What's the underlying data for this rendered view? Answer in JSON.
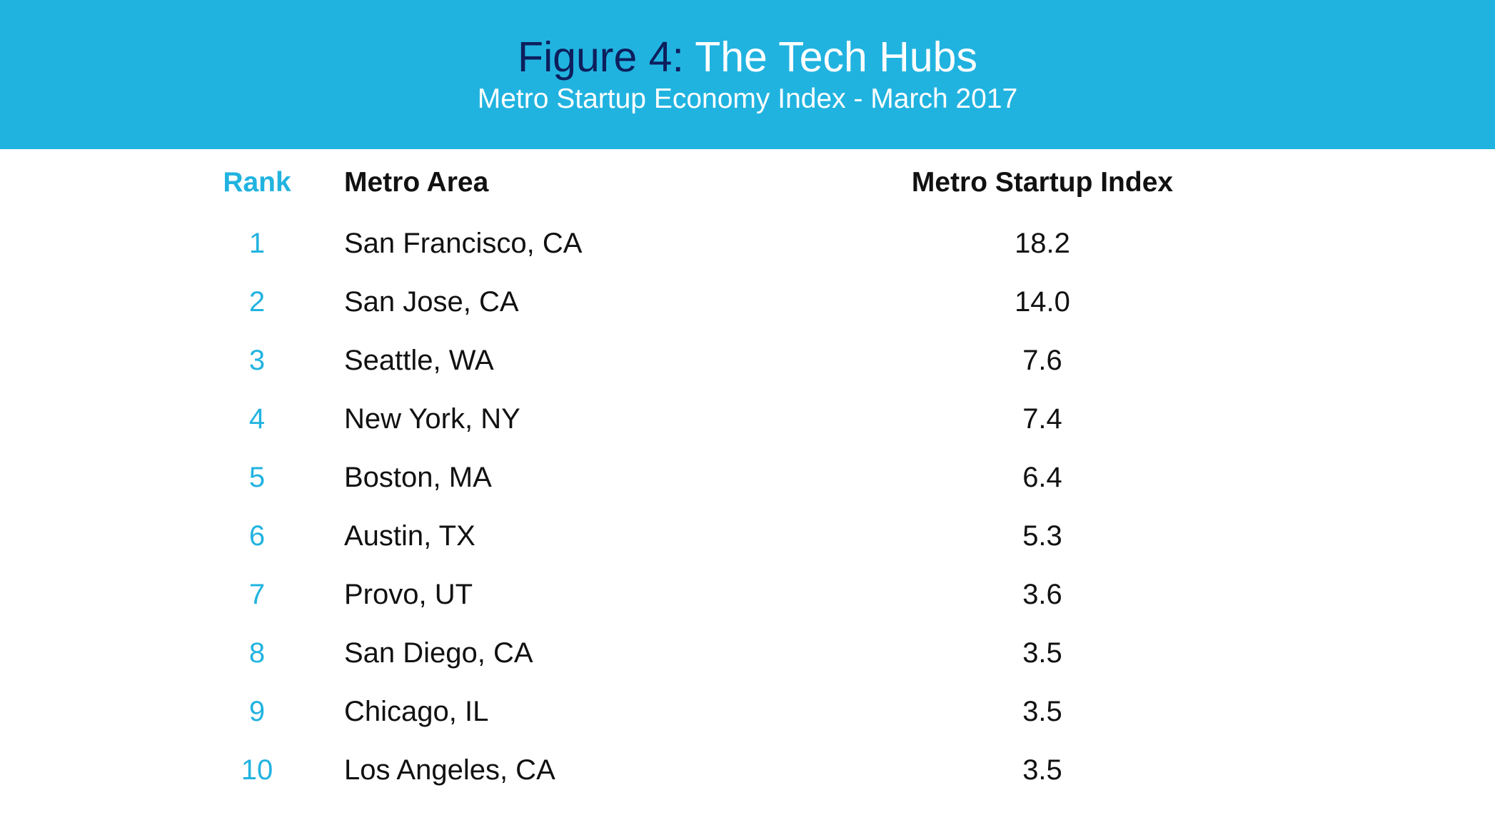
{
  "header": {
    "title_prefix": "Figure 4:",
    "title_main": "The Tech Hubs",
    "subtitle": "Metro Startup Economy Index - March 2017"
  },
  "colors": {
    "banner": "#21b3e0",
    "title_prefix": "#0d1f5c",
    "title_main": "#ffffff",
    "rank": "#21b3e0",
    "text": "#111111"
  },
  "table": {
    "headers": {
      "rank": "Rank",
      "metro": "Metro Area",
      "index": "Metro Startup Index"
    }
  },
  "chart_data": {
    "type": "table",
    "title": "Figure 4: The Tech Hubs",
    "subtitle": "Metro Startup Economy Index - March 2017",
    "columns": [
      "Rank",
      "Metro Area",
      "Metro Startup Index"
    ],
    "rows": [
      {
        "rank": "1",
        "metro": "San Francisco, CA",
        "index": "18.2"
      },
      {
        "rank": "2",
        "metro": "San Jose, CA",
        "index": "14.0"
      },
      {
        "rank": "3",
        "metro": "Seattle, WA",
        "index": "7.6"
      },
      {
        "rank": "4",
        "metro": "New York, NY",
        "index": "7.4"
      },
      {
        "rank": "5",
        "metro": "Boston, MA",
        "index": "6.4"
      },
      {
        "rank": "6",
        "metro": "Austin, TX",
        "index": "5.3"
      },
      {
        "rank": "7",
        "metro": "Provo, UT",
        "index": "3.6"
      },
      {
        "rank": "8",
        "metro": "San Diego, CA",
        "index": "3.5"
      },
      {
        "rank": "9",
        "metro": "Chicago, IL",
        "index": "3.5"
      },
      {
        "rank": "10",
        "metro": "Los Angeles, CA",
        "index": "3.5"
      }
    ]
  }
}
